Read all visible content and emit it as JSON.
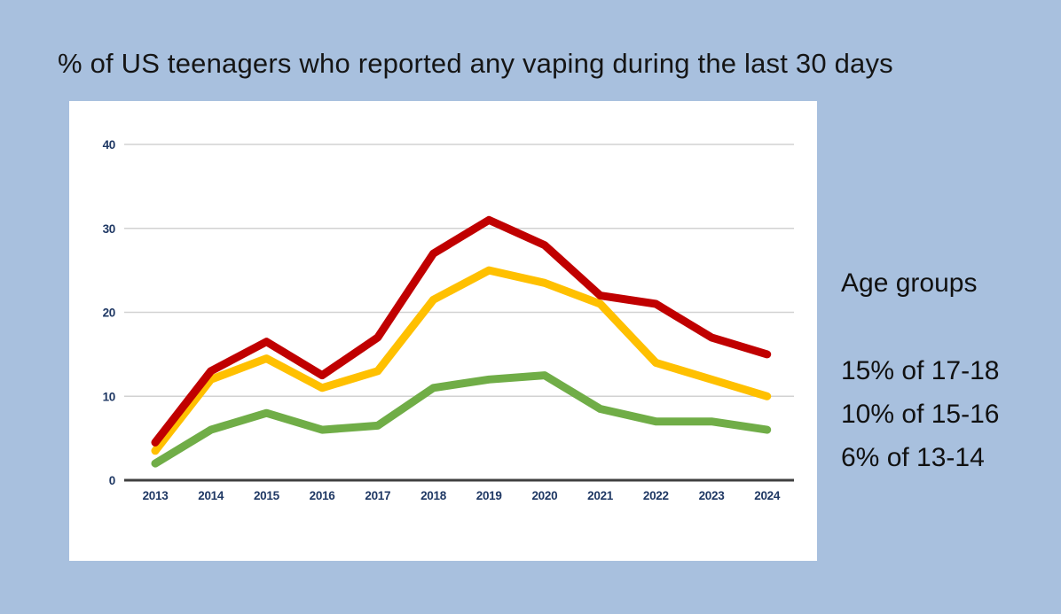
{
  "title": "% of US teenagers who reported any vaping during the last 30 days",
  "side_panel": {
    "heading": "Age groups",
    "entries": [
      {
        "label": "15% of 17-18"
      },
      {
        "label": "10% of 15-16"
      },
      {
        "label": "6% of 13-14"
      }
    ]
  },
  "colors": {
    "background": "#a8c0de",
    "panel": "#ffffff",
    "series_17_18": "#c00000",
    "series_15_16": "#ffc000",
    "series_13_14": "#70ad47",
    "axis_label": "#1f3864",
    "gridline": "#d2d2d2",
    "axis_line": "#404040",
    "title_text": "#151515"
  },
  "chart_data": {
    "type": "line",
    "title": "% of US teenagers who reported any vaping during the last 30 days",
    "x": [
      2013,
      2014,
      2015,
      2016,
      2017,
      2018,
      2019,
      2020,
      2021,
      2022,
      2023,
      2024
    ],
    "series": [
      {
        "name": "17-18",
        "color": "#c00000",
        "values": [
          4.5,
          13,
          16.5,
          12.5,
          17,
          27,
          31,
          28,
          22,
          21,
          17,
          15
        ]
      },
      {
        "name": "15-16",
        "color": "#ffc000",
        "values": [
          3.5,
          12,
          14.5,
          11,
          13,
          21.5,
          25,
          23.5,
          21,
          14,
          12,
          10
        ]
      },
      {
        "name": "13-14",
        "color": "#70ad47",
        "values": [
          2,
          6,
          8,
          6,
          6.5,
          11,
          12,
          12.5,
          8.5,
          7,
          7,
          6
        ]
      }
    ],
    "xlabel": "",
    "ylabel": "",
    "ylim": [
      0,
      40
    ],
    "yticks": [
      0,
      10,
      20,
      30,
      40
    ],
    "grid": true,
    "legend_position": "right-outside",
    "legend_note": "Legend shown as 2024 values: 15% of 17-18 (red), 10% of 15-16 (yellow), 6% of 13-14 (green)"
  }
}
